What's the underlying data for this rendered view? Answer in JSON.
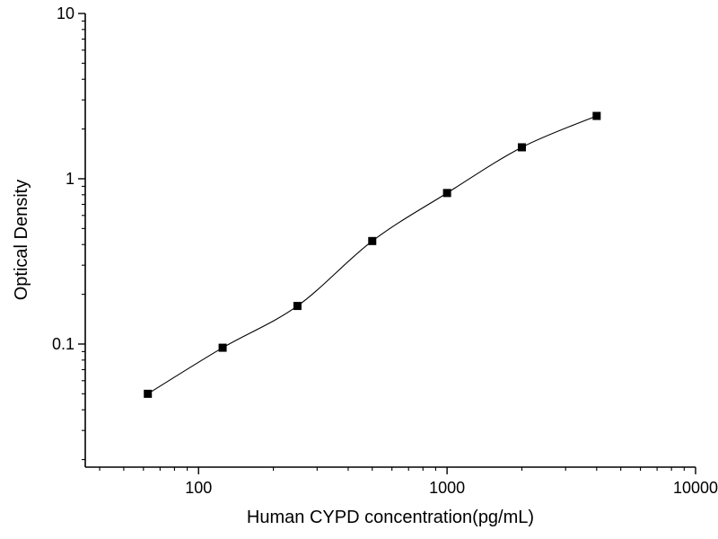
{
  "figure": {
    "background": "#ffffff",
    "foreground": "#000000"
  },
  "chart_data": {
    "type": "scatter",
    "line": "smooth",
    "title": "",
    "xlabel": "Human CYPD concentration(pg/mL)",
    "ylabel": "Optical Density",
    "xscale": "log",
    "yscale": "log",
    "xlim": [
      35,
      10000
    ],
    "ylim": [
      0.018,
      10
    ],
    "x_ticks": [
      100,
      1000,
      10000
    ],
    "y_ticks": [
      0.1,
      1,
      10
    ],
    "x": [
      62.5,
      125,
      250,
      500,
      1000,
      2000,
      4000
    ],
    "y": [
      0.05,
      0.095,
      0.17,
      0.42,
      0.82,
      1.55,
      2.4
    ],
    "marker": "filled-square",
    "marker_size": 9,
    "line_color": "#000000",
    "marker_color": "#000000",
    "grid": false,
    "legend": "none"
  }
}
